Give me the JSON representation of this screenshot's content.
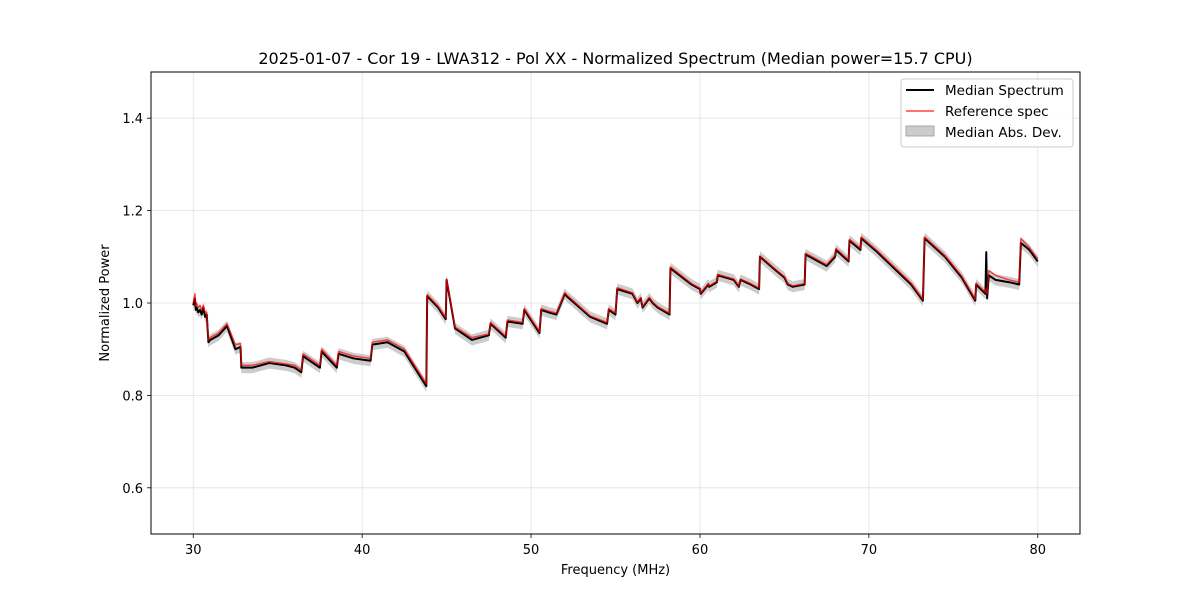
{
  "chart_data": {
    "type": "line",
    "title": "2025-01-07 - Cor 19 - LWA312 - Pol XX - Normalized Spectrum (Median power=15.7 CPU)",
    "xlabel": "Frequency (MHz)",
    "ylabel": "Normalized Power",
    "xlim": [
      27.5,
      82.5
    ],
    "ylim": [
      0.5,
      1.5
    ],
    "xticks": [
      30,
      40,
      50,
      60,
      70,
      80
    ],
    "yticks": [
      0.6,
      0.8,
      1.0,
      1.2,
      1.4
    ],
    "xtick_labels": [
      "30",
      "40",
      "50",
      "60",
      "70",
      "80"
    ],
    "ytick_labels": [
      "0.6",
      "0.8",
      "1.0",
      "1.2",
      "1.4"
    ],
    "grid": true,
    "legend_position": "top-right",
    "legend": [
      "Median Spectrum",
      "Reference spec",
      "Median Abs. Dev."
    ],
    "colors": {
      "median": "#000000",
      "reference": "#ff0000",
      "mad": "#b0b0b0"
    },
    "series": [
      {
        "name": "Median Spectrum",
        "x": [
          30.0,
          30.1,
          30.15,
          30.2,
          30.3,
          30.4,
          30.5,
          30.6,
          30.7,
          30.8,
          30.9,
          31.0,
          31.5,
          32.0,
          32.5,
          32.8,
          32.85,
          33.5,
          34.5,
          35.5,
          36.0,
          36.4,
          36.5,
          37.5,
          37.6,
          38.5,
          38.6,
          39.5,
          40.5,
          40.6,
          41.5,
          42.5,
          43.8,
          43.85,
          44.5,
          44.95,
          45.0,
          45.5,
          46.5,
          47.5,
          47.6,
          48.5,
          48.6,
          49.5,
          49.6,
          50.5,
          50.6,
          51.0,
          51.5,
          52.0,
          52.1,
          53.5,
          54.5,
          54.6,
          55.0,
          55.1,
          56.0,
          56.3,
          56.5,
          56.6,
          57.0,
          57.2,
          57.5,
          58.2,
          58.25,
          59.5,
          60.0,
          60.05,
          60.5,
          60.55,
          61.0,
          61.05,
          62.0,
          62.3,
          62.4,
          63.0,
          63.5,
          63.55,
          64.5,
          65.0,
          65.2,
          65.5,
          66.2,
          66.25,
          67.0,
          67.5,
          68.0,
          68.05,
          68.5,
          68.8,
          68.85,
          69.5,
          69.55,
          70.5,
          71.5,
          72.5,
          73.2,
          73.3,
          74.5,
          75.5,
          76.3,
          76.35,
          76.9,
          76.95,
          77.0,
          77.1,
          77.5,
          78.3,
          78.9,
          79.0,
          79.5,
          80.0
        ],
        "y": [
          0.995,
          1.01,
          0.985,
          0.99,
          0.98,
          0.985,
          0.975,
          0.99,
          0.97,
          0.975,
          0.915,
          0.92,
          0.93,
          0.95,
          0.9,
          0.905,
          0.86,
          0.86,
          0.87,
          0.865,
          0.86,
          0.85,
          0.885,
          0.86,
          0.895,
          0.86,
          0.89,
          0.88,
          0.875,
          0.91,
          0.915,
          0.895,
          0.82,
          1.015,
          0.99,
          0.965,
          1.05,
          0.945,
          0.92,
          0.93,
          0.955,
          0.925,
          0.96,
          0.955,
          0.985,
          0.935,
          0.985,
          0.98,
          0.975,
          1.02,
          1.015,
          0.97,
          0.955,
          0.985,
          0.975,
          1.03,
          1.02,
          1.0,
          1.01,
          0.99,
          1.01,
          1.0,
          0.99,
          0.975,
          1.075,
          1.04,
          1.03,
          1.02,
          1.04,
          1.035,
          1.045,
          1.06,
          1.05,
          1.035,
          1.05,
          1.04,
          1.03,
          1.1,
          1.07,
          1.055,
          1.04,
          1.035,
          1.04,
          1.105,
          1.09,
          1.08,
          1.1,
          1.115,
          1.1,
          1.09,
          1.135,
          1.115,
          1.14,
          1.11,
          1.075,
          1.04,
          1.005,
          1.14,
          1.1,
          1.055,
          1.005,
          1.04,
          1.02,
          1.11,
          1.01,
          1.06,
          1.05,
          1.045,
          1.04,
          1.13,
          1.115,
          1.09
        ]
      },
      {
        "name": "Reference spec",
        "x": [
          30.0,
          30.1,
          30.15,
          30.2,
          30.3,
          30.4,
          30.5,
          30.6,
          30.7,
          30.8,
          30.9,
          31.0,
          31.5,
          32.0,
          32.5,
          32.8,
          32.85,
          33.5,
          34.5,
          35.5,
          36.0,
          36.4,
          36.5,
          37.5,
          37.6,
          38.5,
          38.6,
          39.5,
          40.5,
          40.6,
          41.5,
          42.5,
          43.8,
          43.85,
          44.5,
          44.95,
          45.0,
          45.5,
          46.5,
          47.5,
          47.6,
          48.5,
          48.6,
          49.5,
          49.6,
          50.5,
          50.6,
          51.0,
          51.5,
          52.0,
          52.1,
          53.5,
          54.5,
          54.6,
          55.0,
          55.1,
          56.0,
          56.3,
          56.5,
          56.6,
          57.0,
          57.2,
          57.5,
          58.2,
          58.25,
          59.5,
          60.0,
          60.05,
          60.5,
          60.55,
          61.0,
          61.05,
          62.0,
          62.3,
          62.4,
          63.0,
          63.5,
          63.55,
          64.5,
          65.0,
          65.2,
          65.5,
          66.2,
          66.25,
          67.0,
          67.5,
          68.0,
          68.05,
          68.5,
          68.8,
          68.85,
          69.5,
          69.55,
          70.5,
          71.5,
          72.5,
          73.2,
          73.3,
          74.5,
          75.5,
          76.3,
          76.35,
          76.9,
          76.95,
          77.0,
          77.1,
          77.5,
          78.3,
          78.9,
          79.0,
          79.5,
          80.0
        ],
        "y": [
          1.0,
          1.02,
          0.995,
          1.0,
          0.99,
          0.995,
          0.985,
          0.995,
          0.98,
          0.98,
          0.92,
          0.925,
          0.935,
          0.955,
          0.91,
          0.912,
          0.865,
          0.865,
          0.873,
          0.868,
          0.865,
          0.855,
          0.89,
          0.865,
          0.9,
          0.865,
          0.895,
          0.885,
          0.88,
          0.915,
          0.92,
          0.9,
          0.825,
          1.018,
          0.993,
          0.968,
          1.052,
          0.948,
          0.925,
          0.933,
          0.958,
          0.928,
          0.963,
          0.958,
          0.988,
          0.938,
          0.988,
          0.983,
          0.978,
          1.022,
          1.018,
          0.972,
          0.958,
          0.988,
          0.978,
          1.033,
          1.022,
          1.002,
          1.012,
          0.992,
          1.012,
          1.002,
          0.992,
          0.978,
          1.078,
          1.042,
          1.032,
          1.022,
          1.042,
          1.037,
          1.047,
          1.062,
          1.052,
          1.037,
          1.052,
          1.042,
          1.032,
          1.102,
          1.072,
          1.057,
          1.042,
          1.037,
          1.042,
          1.108,
          1.093,
          1.083,
          1.103,
          1.118,
          1.103,
          1.093,
          1.138,
          1.118,
          1.143,
          1.113,
          1.078,
          1.043,
          1.008,
          1.143,
          1.103,
          1.058,
          1.008,
          1.043,
          1.023,
          1.03,
          1.02,
          1.07,
          1.06,
          1.05,
          1.045,
          1.14,
          1.12,
          1.095
        ]
      }
    ],
    "mad_band": {
      "name": "Median Abs. Dev.",
      "halfwidth": 0.012
    }
  }
}
